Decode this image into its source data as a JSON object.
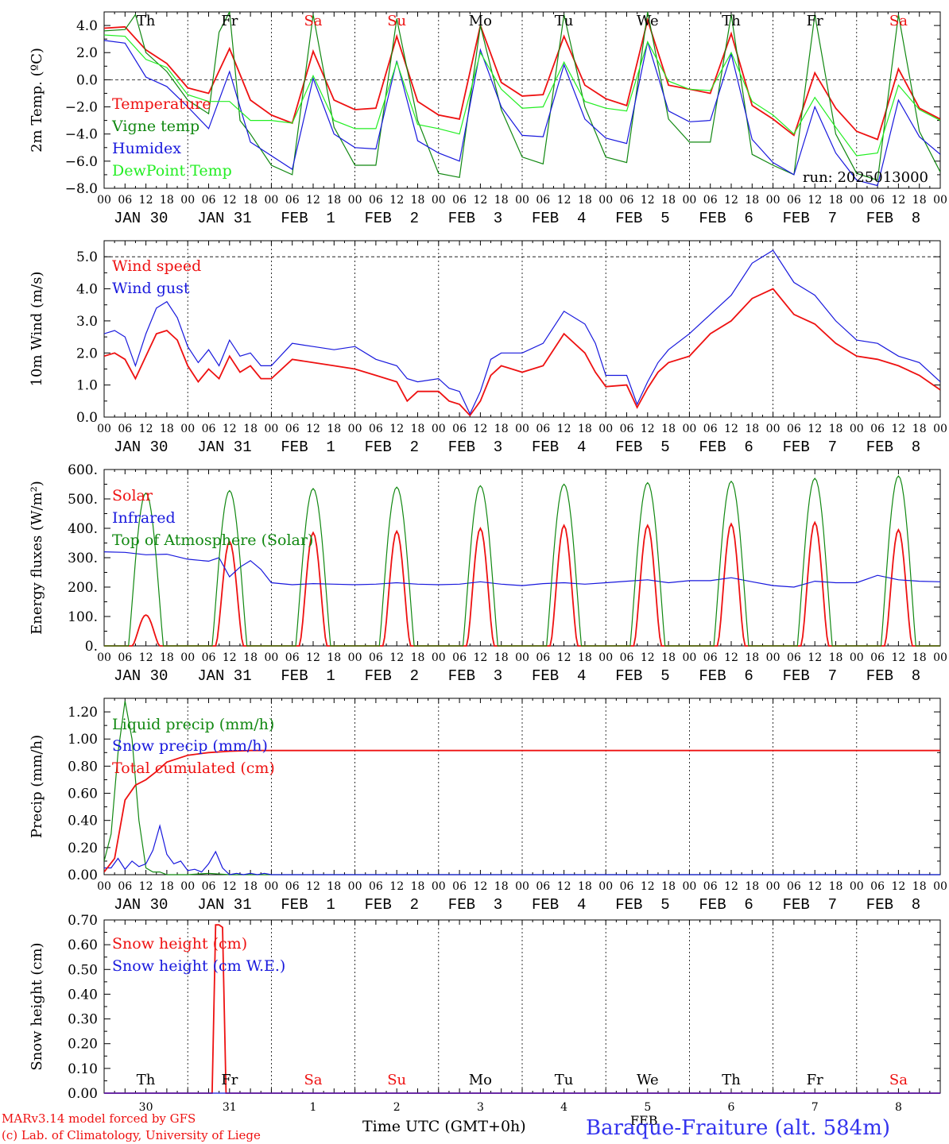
{
  "colors": {
    "red": "#ee1111",
    "darkgreen": "#118811",
    "blue": "#1818dd",
    "lightgreen": "#22ee22",
    "axis": "#000000"
  },
  "footer": {
    "credit_line1": "MARv3.14 model forced by GFS",
    "credit_line2": "(c) Lab. of Climatology, University of Liege",
    "time_label": "Time UTC (GMT+0h)",
    "station": "Baraque-Fraiture (alt. 584m)",
    "month_label": "FEB"
  },
  "time_axis": {
    "days": [
      {
        "date": "JAN 30",
        "dow": "Th",
        "num": "30",
        "dow_color": "black"
      },
      {
        "date": "JAN 31",
        "dow": "Fr",
        "num": "31",
        "dow_color": "black"
      },
      {
        "date": "FEB  1",
        "dow": "Sa",
        "num": "1",
        "dow_color": "red"
      },
      {
        "date": "FEB  2",
        "dow": "Su",
        "num": "2",
        "dow_color": "red"
      },
      {
        "date": "FEB  3",
        "dow": "Mo",
        "num": "3",
        "dow_color": "black"
      },
      {
        "date": "FEB  4",
        "dow": "Tu",
        "num": "4",
        "dow_color": "black"
      },
      {
        "date": "FEB  5",
        "dow": "We",
        "num": "5",
        "dow_color": "black"
      },
      {
        "date": "FEB  6",
        "dow": "Th",
        "num": "6",
        "dow_color": "black"
      },
      {
        "date": "FEB  7",
        "dow": "Fr",
        "num": "7",
        "dow_color": "black"
      },
      {
        "date": "FEB  8",
        "dow": "Sa",
        "num": "8",
        "dow_color": "red"
      }
    ],
    "hour_labels": [
      "00",
      "06",
      "12",
      "18"
    ],
    "end_label": "00"
  },
  "chart_data": [
    {
      "type": "line",
      "ylabel": "2m Temp. (ºC)",
      "ylim": [
        -8,
        5
      ],
      "yticks": [
        -8,
        -6,
        -4,
        -2,
        0,
        2,
        4
      ],
      "ytick_labels": [
        "−8.0",
        "−6.0",
        "−4.0",
        "−2.0",
        "0.0",
        "2.0",
        "4.0"
      ],
      "dashed_ref": 0,
      "run_label": "run: 2025013000",
      "x_unit": "hours since JAN 30 00 UTC",
      "series": [
        {
          "name": "Temperature",
          "color": "red",
          "x": [
            0,
            6,
            12,
            18,
            24,
            30,
            36,
            42,
            48,
            54,
            60,
            66,
            72,
            78,
            84,
            90,
            96,
            102,
            108,
            114,
            120,
            126,
            132,
            138,
            144,
            150,
            156,
            162,
            168,
            174,
            180,
            186,
            192,
            198,
            204,
            210,
            216,
            222,
            228,
            234,
            240
          ],
          "y": [
            3.8,
            3.9,
            2.2,
            1.2,
            -0.6,
            -1.0,
            2.3,
            -1.5,
            -2.6,
            -3.2,
            2.1,
            -1.5,
            -2.2,
            -2.1,
            3.2,
            -1.6,
            -2.6,
            -2.9,
            4.0,
            -0.2,
            -1.2,
            -1.1,
            3.2,
            -0.4,
            -1.4,
            -1.9,
            4.4,
            -0.4,
            -0.7,
            -1.0,
            3.4,
            -1.9,
            -2.9,
            -4.1,
            0.5,
            -2.1,
            -3.8,
            -4.4,
            0.8,
            -2.1,
            -2.9
          ]
        },
        {
          "name": "Vigne temp",
          "color": "darkgreen",
          "x": [
            0,
            6,
            9,
            12,
            18,
            24,
            30,
            33,
            36,
            39,
            42,
            48,
            54,
            60,
            66,
            72,
            78,
            84,
            90,
            96,
            102,
            108,
            114,
            120,
            126,
            132,
            138,
            144,
            150,
            156,
            162,
            168,
            174,
            180,
            186,
            192,
            198,
            204,
            210,
            216,
            222,
            228,
            234,
            240
          ],
          "y": [
            3.6,
            3.7,
            4.8,
            2.0,
            0.6,
            -1.5,
            -2.5,
            3.5,
            5.0,
            -3.0,
            -4.0,
            -6.3,
            -7.0,
            4.8,
            -3.5,
            -6.3,
            -6.3,
            4.5,
            -3.0,
            -6.9,
            -7.2,
            4.0,
            -2.2,
            -5.7,
            -6.2,
            4.8,
            -2.0,
            -5.7,
            -6.1,
            5.0,
            -2.9,
            -4.6,
            -4.6,
            4.8,
            -5.5,
            -6.3,
            -7.0,
            4.8,
            -4.0,
            -6.9,
            -7.4,
            4.8,
            -3.8,
            -6.8
          ]
        },
        {
          "name": "Humidex",
          "color": "blue",
          "x": [
            0,
            6,
            12,
            18,
            24,
            30,
            36,
            42,
            48,
            54,
            60,
            66,
            72,
            78,
            84,
            90,
            96,
            102,
            108,
            114,
            120,
            126,
            132,
            138,
            144,
            150,
            156,
            162,
            168,
            174,
            180,
            186,
            192,
            198,
            204,
            210,
            216,
            222,
            228,
            234,
            240
          ],
          "y": [
            2.9,
            2.7,
            0.2,
            -0.5,
            -2.0,
            -3.6,
            0.6,
            -4.6,
            -5.6,
            -6.6,
            0.1,
            -4.0,
            -5.0,
            -5.1,
            1.4,
            -4.5,
            -5.4,
            -6.0,
            2.2,
            -2.0,
            -4.1,
            -4.2,
            1.1,
            -2.9,
            -4.3,
            -4.7,
            2.8,
            -2.3,
            -3.1,
            -3.0,
            1.9,
            -4.4,
            -6.1,
            -7.0,
            -2.0,
            -5.4,
            -7.4,
            -7.8,
            -1.5,
            -4.2,
            -5.5
          ]
        },
        {
          "name": "DewPoint Temp",
          "color": "lightgreen",
          "x": [
            0,
            6,
            12,
            18,
            24,
            30,
            36,
            42,
            48,
            54,
            60,
            66,
            72,
            78,
            84,
            90,
            96,
            102,
            108,
            114,
            120,
            126,
            132,
            138,
            144,
            150,
            156,
            162,
            168,
            174,
            180,
            186,
            192,
            198,
            204,
            210,
            216,
            222,
            228,
            234,
            240
          ],
          "y": [
            3.3,
            3.2,
            1.5,
            0.9,
            -1.1,
            -1.6,
            -1.6,
            -3.0,
            -3.0,
            -3.2,
            0.3,
            -3.0,
            -3.6,
            -3.6,
            1.3,
            -3.3,
            -3.6,
            -4.0,
            2.0,
            -0.7,
            -2.1,
            -2.0,
            1.3,
            -1.6,
            -2.1,
            -2.3,
            2.8,
            -0.1,
            -0.7,
            -0.8,
            2.0,
            -1.6,
            -2.6,
            -4.0,
            -1.3,
            -3.5,
            -5.6,
            -5.4,
            -0.4,
            -2.2,
            -3.0
          ]
        }
      ]
    },
    {
      "type": "line",
      "ylabel": "10m Wind (m/s)",
      "ylim": [
        0,
        5.5
      ],
      "yticks": [
        0,
        1,
        2,
        3,
        4,
        5
      ],
      "ytick_labels": [
        "0.0",
        "1.0",
        "2.0",
        "3.0",
        "4.0",
        "5.0"
      ],
      "dashed_ref": 5,
      "x_unit": "hours since JAN 30 00 UTC",
      "series": [
        {
          "name": "Wind speed",
          "color": "red",
          "x": [
            0,
            3,
            6,
            9,
            12,
            15,
            18,
            21,
            24,
            27,
            30,
            33,
            36,
            39,
            42,
            45,
            48,
            54,
            60,
            66,
            72,
            78,
            84,
            87,
            90,
            96,
            99,
            102,
            105,
            108,
            111,
            114,
            120,
            126,
            132,
            138,
            141,
            144,
            150,
            153,
            156,
            159,
            162,
            168,
            174,
            180,
            186,
            192,
            198,
            204,
            210,
            216,
            222,
            228,
            234,
            240
          ],
          "y": [
            1.9,
            2.0,
            1.8,
            1.2,
            1.9,
            2.6,
            2.7,
            2.4,
            1.6,
            1.1,
            1.5,
            1.2,
            1.9,
            1.4,
            1.6,
            1.2,
            1.2,
            1.8,
            1.7,
            1.6,
            1.5,
            1.3,
            1.1,
            0.5,
            0.8,
            0.8,
            0.5,
            0.4,
            0.05,
            0.5,
            1.3,
            1.6,
            1.4,
            1.6,
            2.6,
            2.0,
            1.4,
            0.95,
            1.0,
            0.3,
            0.9,
            1.4,
            1.7,
            1.9,
            2.6,
            3.0,
            3.7,
            4.0,
            3.2,
            2.9,
            2.3,
            1.9,
            1.8,
            1.6,
            1.3,
            0.85
          ]
        },
        {
          "name": "Wind gust",
          "color": "blue",
          "x": [
            0,
            3,
            6,
            9,
            12,
            15,
            18,
            21,
            24,
            27,
            30,
            33,
            36,
            39,
            42,
            45,
            48,
            54,
            60,
            66,
            72,
            78,
            84,
            87,
            90,
            96,
            99,
            102,
            105,
            108,
            111,
            114,
            120,
            126,
            132,
            138,
            141,
            144,
            150,
            153,
            156,
            159,
            162,
            168,
            174,
            180,
            186,
            192,
            198,
            204,
            210,
            216,
            222,
            228,
            234,
            240
          ],
          "y": [
            2.6,
            2.7,
            2.5,
            1.6,
            2.6,
            3.4,
            3.6,
            3.1,
            2.2,
            1.7,
            2.1,
            1.6,
            2.4,
            1.9,
            2.0,
            1.6,
            1.6,
            2.3,
            2.2,
            2.1,
            2.2,
            1.8,
            1.6,
            1.2,
            1.1,
            1.2,
            0.9,
            0.8,
            0.1,
            0.8,
            1.8,
            2.0,
            2.0,
            2.3,
            3.3,
            2.9,
            2.3,
            1.3,
            1.3,
            0.4,
            1.1,
            1.7,
            2.1,
            2.6,
            3.2,
            3.8,
            4.8,
            5.2,
            4.2,
            3.8,
            3.0,
            2.4,
            2.3,
            1.9,
            1.7,
            1.1
          ]
        }
      ]
    },
    {
      "type": "line",
      "ylabel": "Energy fluxes (W/m²)",
      "ylim": [
        0,
        600
      ],
      "yticks": [
        0,
        100,
        200,
        300,
        400,
        500,
        600
      ],
      "ytick_labels": [
        "0.",
        "100.",
        "200.",
        "300.",
        "400.",
        "500.",
        "600."
      ],
      "x_unit": "hours since JAN 30 00 UTC",
      "series": [
        {
          "name": "Solar",
          "color": "red",
          "peaks": [
            105,
            355,
            385,
            390,
            400,
            410,
            410,
            415,
            420,
            395
          ]
        },
        {
          "name": "Infrared",
          "color": "blue",
          "x": [
            0,
            6,
            12,
            18,
            24,
            30,
            33,
            36,
            39,
            42,
            45,
            48,
            54,
            60,
            66,
            72,
            78,
            84,
            90,
            96,
            102,
            108,
            114,
            120,
            126,
            132,
            138,
            144,
            150,
            156,
            162,
            168,
            174,
            180,
            186,
            192,
            198,
            204,
            210,
            216,
            222,
            228,
            234,
            240
          ],
          "y": [
            320,
            318,
            310,
            312,
            295,
            288,
            300,
            235,
            268,
            290,
            260,
            215,
            208,
            212,
            210,
            208,
            210,
            215,
            210,
            208,
            210,
            218,
            210,
            205,
            212,
            215,
            210,
            215,
            220,
            225,
            215,
            222,
            222,
            232,
            218,
            205,
            200,
            220,
            215,
            215,
            240,
            225,
            220,
            218
          ]
        },
        {
          "name": "Top of Atmosphere (Solar)",
          "color": "darkgreen",
          "peaks": [
            520,
            528,
            535,
            540,
            545,
            550,
            555,
            560,
            570,
            578
          ]
        }
      ]
    },
    {
      "type": "line",
      "ylabel": "Precip (mm/h)",
      "ylim": [
        0,
        1.3
      ],
      "yticks": [
        0,
        0.2,
        0.4,
        0.6,
        0.8,
        1.0,
        1.2
      ],
      "ytick_labels": [
        "0.00",
        "0.20",
        "0.40",
        "0.60",
        "0.80",
        "1.00",
        "1.20"
      ],
      "x_unit": "hours since JAN 30 00 UTC",
      "series": [
        {
          "name": "Liquid precip (mm/h)",
          "color": "darkgreen",
          "x": [
            0,
            2,
            4,
            6,
            8,
            10,
            12,
            14,
            16,
            18,
            24,
            30,
            36,
            42,
            48,
            240
          ],
          "y": [
            0.1,
            0.3,
            0.9,
            1.28,
            1.0,
            0.4,
            0.05,
            0.02,
            0.02,
            0.0,
            0.0,
            0.01,
            0.0,
            0.0,
            0.0,
            0.0
          ]
        },
        {
          "name": "Snow precip (mm/h)",
          "color": "blue",
          "x": [
            0,
            2,
            4,
            6,
            8,
            10,
            12,
            14,
            16,
            18,
            20,
            22,
            24,
            26,
            28,
            30,
            32,
            34,
            36,
            38,
            40,
            42,
            44,
            46,
            48,
            240
          ],
          "y": [
            0.05,
            0.05,
            0.12,
            0.04,
            0.1,
            0.06,
            0.08,
            0.18,
            0.36,
            0.15,
            0.08,
            0.1,
            0.03,
            0.04,
            0.02,
            0.08,
            0.17,
            0.05,
            0.0,
            0.01,
            0.0,
            0.01,
            0.0,
            0.01,
            0.0,
            0.0
          ]
        },
        {
          "name": "Total cumulated (cm)",
          "color": "red",
          "x": [
            0,
            3,
            6,
            9,
            12,
            15,
            18,
            24,
            30,
            36,
            42,
            48,
            240
          ],
          "y": [
            0.02,
            0.12,
            0.55,
            0.66,
            0.7,
            0.76,
            0.83,
            0.88,
            0.9,
            0.91,
            0.915,
            0.915,
            0.915
          ]
        }
      ]
    },
    {
      "type": "line",
      "ylabel": "Snow height (cm)",
      "ylim": [
        0,
        0.7
      ],
      "yticks": [
        0,
        0.1,
        0.2,
        0.3,
        0.4,
        0.5,
        0.6,
        0.7
      ],
      "ytick_labels": [
        "0.00",
        "0.10",
        "0.20",
        "0.30",
        "0.40",
        "0.50",
        "0.60",
        "0.70"
      ],
      "x_unit": "hours since JAN 30 00 UTC",
      "series": [
        {
          "name": "Snow height (cm)",
          "color": "red",
          "x": [
            0,
            31,
            32,
            33,
            34,
            35,
            240
          ],
          "y": [
            0,
            0,
            0.68,
            0.68,
            0.67,
            0,
            0
          ]
        },
        {
          "name": "Snow height (cm W.E.)",
          "color": "blue",
          "x": [
            0,
            240
          ],
          "y": [
            0,
            0
          ]
        }
      ]
    }
  ]
}
